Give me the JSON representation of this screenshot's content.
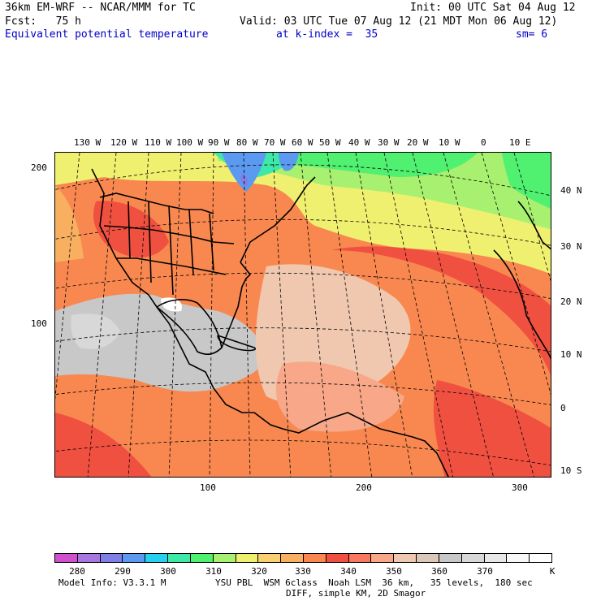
{
  "header": {
    "line1_left": "36km EM-WRF -- NCAR/MMM for TC",
    "line1_right": "Init: 00 UTC Sat 04 Aug 12",
    "line2_left": "Fcst:   75 h",
    "line2_right": "Valid: 03 UTC Tue 07 Aug 12 (21 MDT Mon 06 Aug 12)",
    "line3_field": "Equivalent potential temperature",
    "line3_level": "at k-index =  35",
    "line3_sm": "sm= 6"
  },
  "map": {
    "lon_labels": [
      "130 W",
      "120 W",
      "110 W",
      "100 W",
      "90 W",
      "80 W",
      "70 W",
      "60 W",
      "50 W",
      "40 W",
      "30 W",
      "20 W",
      "10 W",
      "0",
      "10 E"
    ],
    "lat_labels": [
      "40 N",
      "30 N",
      "20 N",
      "10 N",
      "0",
      "10 S"
    ],
    "grid_y_labels": [
      "200",
      "100"
    ],
    "grid_x_labels": [
      "100",
      "200",
      "300"
    ]
  },
  "colorbar": {
    "colors": [
      "#d050d0",
      "#a878e0",
      "#7f7fe8",
      "#5b9af0",
      "#28d0f0",
      "#3ee8a8",
      "#50f070",
      "#a8f070",
      "#f0f070",
      "#f8d070",
      "#f8b060",
      "#f88850",
      "#f05040",
      "#f87860",
      "#f8a888",
      "#f0c8b0",
      "#dcc8b8",
      "#c8c8c8",
      "#d8d8d8",
      "#e8e8e8",
      "#f8f8f8",
      "#ffffff"
    ],
    "labels": [
      "280",
      "290",
      "300",
      "310",
      "320",
      "330",
      "340",
      "350",
      "360",
      "370"
    ],
    "unit": "K"
  },
  "footer": {
    "line1_left": "Model Info: V3.3.1 M",
    "line1_right": "YSU PBL  WSM 6class  Noah LSM  36 km,   35 levels,  180 sec",
    "line2": "DIFF, simple KM, 2D Smagor"
  }
}
